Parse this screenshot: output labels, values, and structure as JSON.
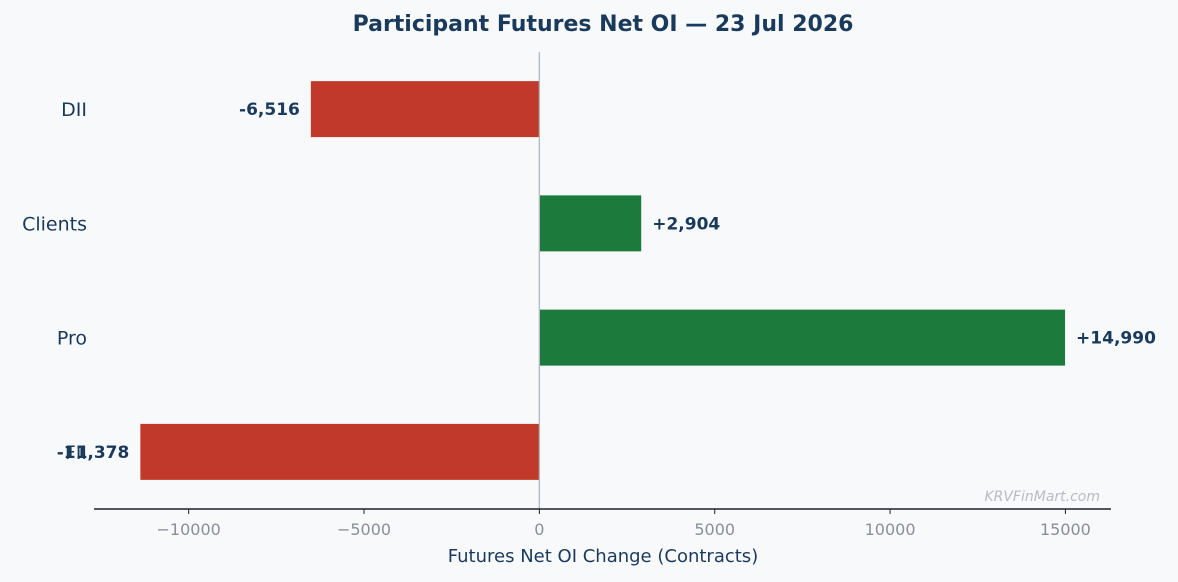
{
  "chart_data": {
    "type": "bar",
    "orientation": "horizontal",
    "title": "Participant Futures Net OI — 23 Jul 2026",
    "xlabel": "Futures Net OI Change (Contracts)",
    "ylabel": "",
    "categories": [
      "DII",
      "Clients",
      "Pro",
      "FII"
    ],
    "values": [
      -6516,
      2904,
      14990,
      -11378
    ],
    "value_labels": [
      "-6,516",
      "+2,904",
      "+14,990",
      "-11,378"
    ],
    "xlim": [
      -12700,
      16300
    ],
    "xticks": [
      -10000,
      -5000,
      0,
      5000,
      10000,
      15000
    ],
    "xtick_labels": [
      "−10000",
      "−5000",
      "0",
      "5000",
      "10000",
      "15000"
    ],
    "grid": false,
    "colors": {
      "positive": "#1c7a3c",
      "negative": "#c0392b",
      "text": "#1a3a5c",
      "zero_line": "#b0b8c4"
    },
    "watermark": "KRVFinMart.com"
  }
}
